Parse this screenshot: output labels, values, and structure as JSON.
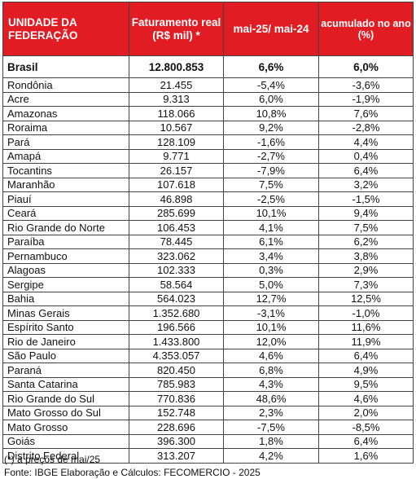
{
  "headers": {
    "uf": "UNIDADE DA FEDERAÇÃO",
    "faturamento": "Faturamento real (R$ mil) *",
    "var_mensal": "mai-25/ mai-24",
    "acumulado": "acumulado no ano (%)"
  },
  "brasil": {
    "name": "Brasil",
    "faturamento": "12.800.853",
    "var": "6,6%",
    "acum": "6,0%"
  },
  "rows": [
    {
      "name": "Rondônia",
      "faturamento": "21.455",
      "var": "-5,4%",
      "acum": "-3,6%"
    },
    {
      "name": "Acre",
      "faturamento": "9.313",
      "var": "6,0%",
      "acum": "-1,9%"
    },
    {
      "name": "Amazonas",
      "faturamento": "118.066",
      "var": "10,8%",
      "acum": "7,6%"
    },
    {
      "name": "Roraima",
      "faturamento": "10.567",
      "var": "9,2%",
      "acum": "-2,8%"
    },
    {
      "name": "Pará",
      "faturamento": "128.109",
      "var": "-1,6%",
      "acum": "4,4%"
    },
    {
      "name": "Amapá",
      "faturamento": "9.771",
      "var": "-2,7%",
      "acum": "0,4%"
    },
    {
      "name": "Tocantins",
      "faturamento": "26.157",
      "var": "-7,9%",
      "acum": "6,4%"
    },
    {
      "name": "Maranhão",
      "faturamento": "107.618",
      "var": "7,5%",
      "acum": "3,2%"
    },
    {
      "name": "Piauí",
      "faturamento": "46.898",
      "var": "-2,5%",
      "acum": "-1,5%"
    },
    {
      "name": "Ceará",
      "faturamento": "285.699",
      "var": "10,1%",
      "acum": "9,4%"
    },
    {
      "name": "Rio Grande do Norte",
      "faturamento": "106.453",
      "var": "4,1%",
      "acum": "7,5%"
    },
    {
      "name": "Paraíba",
      "faturamento": "78.445",
      "var": "6,1%",
      "acum": "6,2%"
    },
    {
      "name": "Pernambuco",
      "faturamento": "323.062",
      "var": "3,4%",
      "acum": "3,8%"
    },
    {
      "name": "Alagoas",
      "faturamento": "102.333",
      "var": "0,3%",
      "acum": "2,9%"
    },
    {
      "name": "Sergipe",
      "faturamento": "58.564",
      "var": "5,0%",
      "acum": "7,3%"
    },
    {
      "name": "Bahia",
      "faturamento": "564.023",
      "var": "12,7%",
      "acum": "12,5%"
    },
    {
      "name": "Minas Gerais",
      "faturamento": "1.352.680",
      "var": "-3,1%",
      "acum": "-1,0%"
    },
    {
      "name": "Espírito Santo",
      "faturamento": "196.566",
      "var": "10,1%",
      "acum": "11,6%"
    },
    {
      "name": "Rio de Janeiro",
      "faturamento": "1.433.800",
      "var": "12,0%",
      "acum": "11,9%"
    },
    {
      "name": "São Paulo",
      "faturamento": "4.353.057",
      "var": "4,6%",
      "acum": "6,4%"
    },
    {
      "name": "Paraná",
      "faturamento": "820.450",
      "var": "6,8%",
      "acum": "4,9%"
    },
    {
      "name": "Santa Catarina",
      "faturamento": "785.983",
      "var": "4,3%",
      "acum": "9,5%"
    },
    {
      "name": "Rio Grande do Sul",
      "faturamento": "770.836",
      "var": "48,6%",
      "acum": "4,6%"
    },
    {
      "name": "Mato Grosso do Sul",
      "faturamento": "152.748",
      "var": "2,3%",
      "acum": "2,0%"
    },
    {
      "name": "Mato Grosso",
      "faturamento": "228.696",
      "var": "-7,5%",
      "acum": "-8,5%"
    },
    {
      "name": "Goiás",
      "faturamento": "396.300",
      "var": "1,8%",
      "acum": "6,4%"
    },
    {
      "name": "Distrito Federal",
      "faturamento": "313.207",
      "var": "4,2%",
      "acum": "1,6%"
    }
  ],
  "footnotes": {
    "note": "(*) a preços de mai/25",
    "source": "Fonte: IBGE Elaboração e Cálculos: FECOMERCIO - 2025"
  },
  "colors": {
    "header_bg": "#e21c23",
    "header_text": "#ffffff",
    "border": "#444444"
  }
}
